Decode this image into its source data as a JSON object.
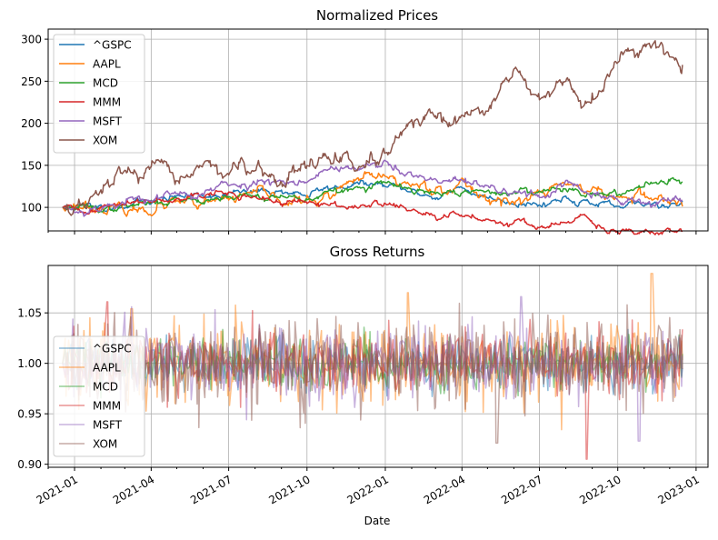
{
  "chart_data": [
    {
      "type": "line",
      "title": "Normalized Prices",
      "xlabel": "",
      "ylabel": "",
      "x_range": [
        "2020-12-01",
        "2023-01-15"
      ],
      "ylim": [
        72,
        312
      ],
      "y_ticks": [
        100,
        150,
        200,
        250,
        300
      ],
      "grid": true,
      "legend": "upper-left",
      "series": [
        {
          "name": "^GSPC",
          "color": "#1f77b4",
          "noise": 1.5,
          "seed": 11,
          "points": [
            [
              "2020-12-18",
              100
            ],
            [
              "2021-02-01",
              101
            ],
            [
              "2021-03-01",
              103
            ],
            [
              "2021-04-01",
              109
            ],
            [
              "2021-05-01",
              112
            ],
            [
              "2021-06-01",
              115
            ],
            [
              "2021-07-01",
              116
            ],
            [
              "2021-08-01",
              118
            ],
            [
              "2021-09-01",
              120
            ],
            [
              "2021-10-01",
              115
            ],
            [
              "2021-11-01",
              124
            ],
            [
              "2021-12-01",
              128
            ],
            [
              "2022-01-01",
              126
            ],
            [
              "2022-02-01",
              118
            ],
            [
              "2022-03-01",
              113
            ],
            [
              "2022-04-01",
              122
            ],
            [
              "2022-05-01",
              112
            ],
            [
              "2022-06-01",
              108
            ],
            [
              "2022-07-01",
              103
            ],
            [
              "2022-08-01",
              112
            ],
            [
              "2022-09-01",
              105
            ],
            [
              "2022-10-01",
              98
            ],
            [
              "2022-11-01",
              104
            ],
            [
              "2022-12-16",
              106
            ]
          ]
        },
        {
          "name": "AAPL",
          "color": "#ff7f0e",
          "noise": 2.5,
          "seed": 23,
          "points": [
            [
              "2020-12-18",
              100
            ],
            [
              "2021-01-05",
              104
            ],
            [
              "2021-02-01",
              102
            ],
            [
              "2021-03-01",
              94
            ],
            [
              "2021-04-01",
              100
            ],
            [
              "2021-05-01",
              104
            ],
            [
              "2021-06-01",
              100
            ],
            [
              "2021-07-01",
              110
            ],
            [
              "2021-08-01",
              114
            ],
            [
              "2021-09-01",
              110
            ],
            [
              "2021-10-01",
              105
            ],
            [
              "2021-11-01",
              115
            ],
            [
              "2021-12-01",
              132
            ],
            [
              "2022-01-01",
              135
            ],
            [
              "2022-02-01",
              127
            ],
            [
              "2022-03-01",
              125
            ],
            [
              "2022-04-01",
              125
            ],
            [
              "2022-05-01",
              112
            ],
            [
              "2022-06-01",
              105
            ],
            [
              "2022-07-01",
              115
            ],
            [
              "2022-08-01",
              130
            ],
            [
              "2022-09-01",
              120
            ],
            [
              "2022-10-01",
              110
            ],
            [
              "2022-11-01",
              115
            ],
            [
              "2022-12-16",
              103
            ]
          ]
        },
        {
          "name": "MCD",
          "color": "#2ca02c",
          "noise": 1.5,
          "seed": 37,
          "points": [
            [
              "2020-12-18",
              100
            ],
            [
              "2021-02-01",
              98
            ],
            [
              "2021-03-01",
              100
            ],
            [
              "2021-04-01",
              105
            ],
            [
              "2021-05-01",
              110
            ],
            [
              "2021-06-01",
              110
            ],
            [
              "2021-07-01",
              113
            ],
            [
              "2021-08-01",
              114
            ],
            [
              "2021-09-01",
              113
            ],
            [
              "2021-10-01",
              110
            ],
            [
              "2021-11-01",
              118
            ],
            [
              "2021-12-01",
              122
            ],
            [
              "2022-01-01",
              128
            ],
            [
              "2022-02-01",
              120
            ],
            [
              "2022-03-01",
              115
            ],
            [
              "2022-04-01",
              118
            ],
            [
              "2022-05-01",
              117
            ],
            [
              "2022-06-01",
              118
            ],
            [
              "2022-07-01",
              120
            ],
            [
              "2022-08-01",
              122
            ],
            [
              "2022-09-01",
              118
            ],
            [
              "2022-10-01",
              112
            ],
            [
              "2022-11-01",
              130
            ],
            [
              "2022-12-01",
              134
            ],
            [
              "2022-12-16",
              132
            ]
          ]
        },
        {
          "name": "MMM",
          "color": "#d62728",
          "noise": 1.5,
          "seed": 41,
          "points": [
            [
              "2020-12-18",
              100
            ],
            [
              "2021-01-10",
              95
            ],
            [
              "2021-02-01",
              100
            ],
            [
              "2021-03-01",
              104
            ],
            [
              "2021-04-01",
              110
            ],
            [
              "2021-05-01",
              114
            ],
            [
              "2021-06-01",
              117
            ],
            [
              "2021-07-01",
              115
            ],
            [
              "2021-08-01",
              112
            ],
            [
              "2021-09-01",
              106
            ],
            [
              "2021-10-01",
              104
            ],
            [
              "2021-11-01",
              102
            ],
            [
              "2021-12-01",
              102
            ],
            [
              "2022-01-01",
              104
            ],
            [
              "2022-02-01",
              96
            ],
            [
              "2022-03-01",
              88
            ],
            [
              "2022-04-01",
              89
            ],
            [
              "2022-05-01",
              86
            ],
            [
              "2022-06-01",
              84
            ],
            [
              "2022-07-01",
              78
            ],
            [
              "2022-08-01",
              80
            ],
            [
              "2022-08-25",
              88
            ],
            [
              "2022-09-10",
              75
            ],
            [
              "2022-10-01",
              67
            ],
            [
              "2022-11-01",
              75
            ],
            [
              "2022-12-16",
              74
            ]
          ]
        },
        {
          "name": "MSFT",
          "color": "#9467bd",
          "noise": 2.0,
          "seed": 53,
          "points": [
            [
              "2020-12-18",
              100
            ],
            [
              "2021-01-10",
              96
            ],
            [
              "2021-02-01",
              103
            ],
            [
              "2021-03-01",
              105
            ],
            [
              "2021-04-01",
              114
            ],
            [
              "2021-05-01",
              113
            ],
            [
              "2021-06-01",
              117
            ],
            [
              "2021-07-01",
              126
            ],
            [
              "2021-08-01",
              130
            ],
            [
              "2021-09-01",
              135
            ],
            [
              "2021-10-01",
              130
            ],
            [
              "2021-11-01",
              150
            ],
            [
              "2021-12-01",
              145
            ],
            [
              "2022-01-01",
              150
            ],
            [
              "2022-02-01",
              135
            ],
            [
              "2022-03-01",
              130
            ],
            [
              "2022-04-01",
              132
            ],
            [
              "2022-05-01",
              120
            ],
            [
              "2022-06-01",
              118
            ],
            [
              "2022-07-01",
              115
            ],
            [
              "2022-08-01",
              128
            ],
            [
              "2022-09-01",
              115
            ],
            [
              "2022-10-01",
              105
            ],
            [
              "2022-11-01",
              108
            ],
            [
              "2022-12-16",
              110
            ]
          ]
        },
        {
          "name": "XOM",
          "color": "#8c564b",
          "noise": 3.5,
          "seed": 67,
          "points": [
            [
              "2020-12-18",
              100
            ],
            [
              "2021-01-05",
              98
            ],
            [
              "2021-02-01",
              115
            ],
            [
              "2021-03-01",
              148
            ],
            [
              "2021-03-20",
              138
            ],
            [
              "2021-04-01",
              140
            ],
            [
              "2021-05-01",
              135
            ],
            [
              "2021-06-01",
              150
            ],
            [
              "2021-07-01",
              145
            ],
            [
              "2021-08-01",
              138
            ],
            [
              "2021-09-01",
              130
            ],
            [
              "2021-10-01",
              150
            ],
            [
              "2021-11-01",
              160
            ],
            [
              "2021-12-01",
              150
            ],
            [
              "2022-01-01",
              152
            ],
            [
              "2022-02-01",
              200
            ],
            [
              "2022-03-01",
              195
            ],
            [
              "2022-04-01",
              200
            ],
            [
              "2022-05-01",
              225
            ],
            [
              "2022-06-01",
              262
            ],
            [
              "2022-06-15",
              240
            ],
            [
              "2022-07-01",
              225
            ],
            [
              "2022-08-01",
              240
            ],
            [
              "2022-09-01",
              225
            ],
            [
              "2022-10-01",
              270
            ],
            [
              "2022-11-01",
              290
            ],
            [
              "2022-11-20",
              298
            ],
            [
              "2022-12-01",
              290
            ],
            [
              "2022-12-16",
              275
            ]
          ]
        }
      ]
    },
    {
      "type": "line",
      "title": "Gross Returns",
      "xlabel": "Date",
      "ylabel": "",
      "x_range": [
        "2020-12-01",
        "2023-01-15"
      ],
      "x_ticks": [
        "2021-01",
        "2021-04",
        "2021-07",
        "2021-10",
        "2022-01",
        "2022-04",
        "2022-07",
        "2022-10",
        "2023-01"
      ],
      "ylim": [
        0.897,
        1.097
      ],
      "y_ticks": [
        0.9,
        0.95,
        1.0,
        1.05
      ],
      "grid": true,
      "legend": "center-left",
      "series_opacity": 0.5,
      "series": [
        {
          "name": "^GSPC",
          "color": "#1f77b4",
          "volatility": 0.012,
          "seed": 101
        },
        {
          "name": "AAPL",
          "color": "#ff7f0e",
          "volatility": 0.02,
          "seed": 202
        },
        {
          "name": "MCD",
          "color": "#2ca02c",
          "volatility": 0.012,
          "seed": 303
        },
        {
          "name": "MMM",
          "color": "#d62728",
          "volatility": 0.015,
          "seed": 404
        },
        {
          "name": "MSFT",
          "color": "#9467bd",
          "volatility": 0.018,
          "seed": 505
        },
        {
          "name": "XOM",
          "color": "#8c564b",
          "volatility": 0.02,
          "seed": 606
        }
      ],
      "notable_points": [
        {
          "series": "AAPL",
          "date": "2022-01-28",
          "value": 1.07
        },
        {
          "series": "AAPL",
          "date": "2022-11-10",
          "value": 1.089
        },
        {
          "series": "MMM",
          "date": "2022-08-26",
          "value": 0.905
        },
        {
          "series": "XOM",
          "date": "2022-05-12",
          "value": 0.921
        },
        {
          "series": "MSFT",
          "date": "2022-10-26",
          "value": 0.923
        },
        {
          "series": "MMM",
          "date": "2021-02-08",
          "value": 1.061
        },
        {
          "series": "MSFT",
          "date": "2022-06-10",
          "value": 1.066
        },
        {
          "series": "AAPL",
          "date": "2021-03-09",
          "value": 1.054
        }
      ]
    }
  ],
  "x_tick_labels": [
    "2021-01",
    "2021-04",
    "2021-07",
    "2021-10",
    "2022-01",
    "2022-04",
    "2022-07",
    "2022-10",
    "2023-01"
  ]
}
